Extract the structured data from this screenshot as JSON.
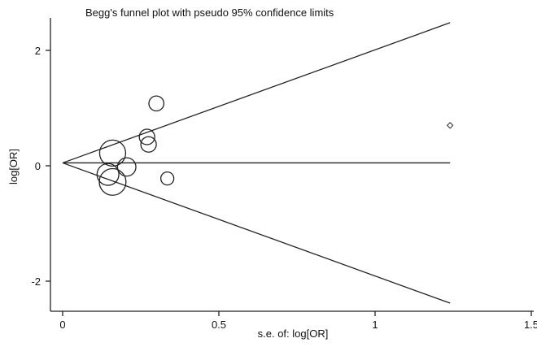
{
  "chart_data": {
    "type": "scatter",
    "title": "Begg's funnel plot with pseudo 95% confidence limits",
    "xlabel": "s.e. of: log[OR]",
    "ylabel": "log[OR]",
    "xlim": [
      0,
      1.5
    ],
    "ylim": [
      -2.4,
      2.6
    ],
    "xticks": [
      0,
      0.5,
      1,
      1.5
    ],
    "xtick_labels": [
      "0",
      "0.5",
      "1",
      "1.5"
    ],
    "yticks": [
      -2,
      0,
      2
    ],
    "ytick_labels": [
      "-2",
      "0",
      "2"
    ],
    "pooled_estimate": 0.05,
    "se_max": 1.24,
    "pseudo_ci_multiplier": 1.96,
    "series": [
      {
        "marker": "circle",
        "points": [
          {
            "x": 0.16,
            "y": 0.22,
            "weight": 1.0
          },
          {
            "x": 0.16,
            "y": -0.28,
            "weight": 1.05
          },
          {
            "x": 0.145,
            "y": -0.15,
            "weight": 0.7
          },
          {
            "x": 0.205,
            "y": -0.02,
            "weight": 0.5
          },
          {
            "x": 0.27,
            "y": 0.5,
            "weight": 0.35
          },
          {
            "x": 0.275,
            "y": 0.37,
            "weight": 0.35
          },
          {
            "x": 0.3,
            "y": 1.08,
            "weight": 0.33
          },
          {
            "x": 0.335,
            "y": -0.22,
            "weight": 0.25
          }
        ]
      },
      {
        "marker": "diamond",
        "points": [
          {
            "x": 1.24,
            "y": 0.7
          }
        ]
      }
    ]
  }
}
